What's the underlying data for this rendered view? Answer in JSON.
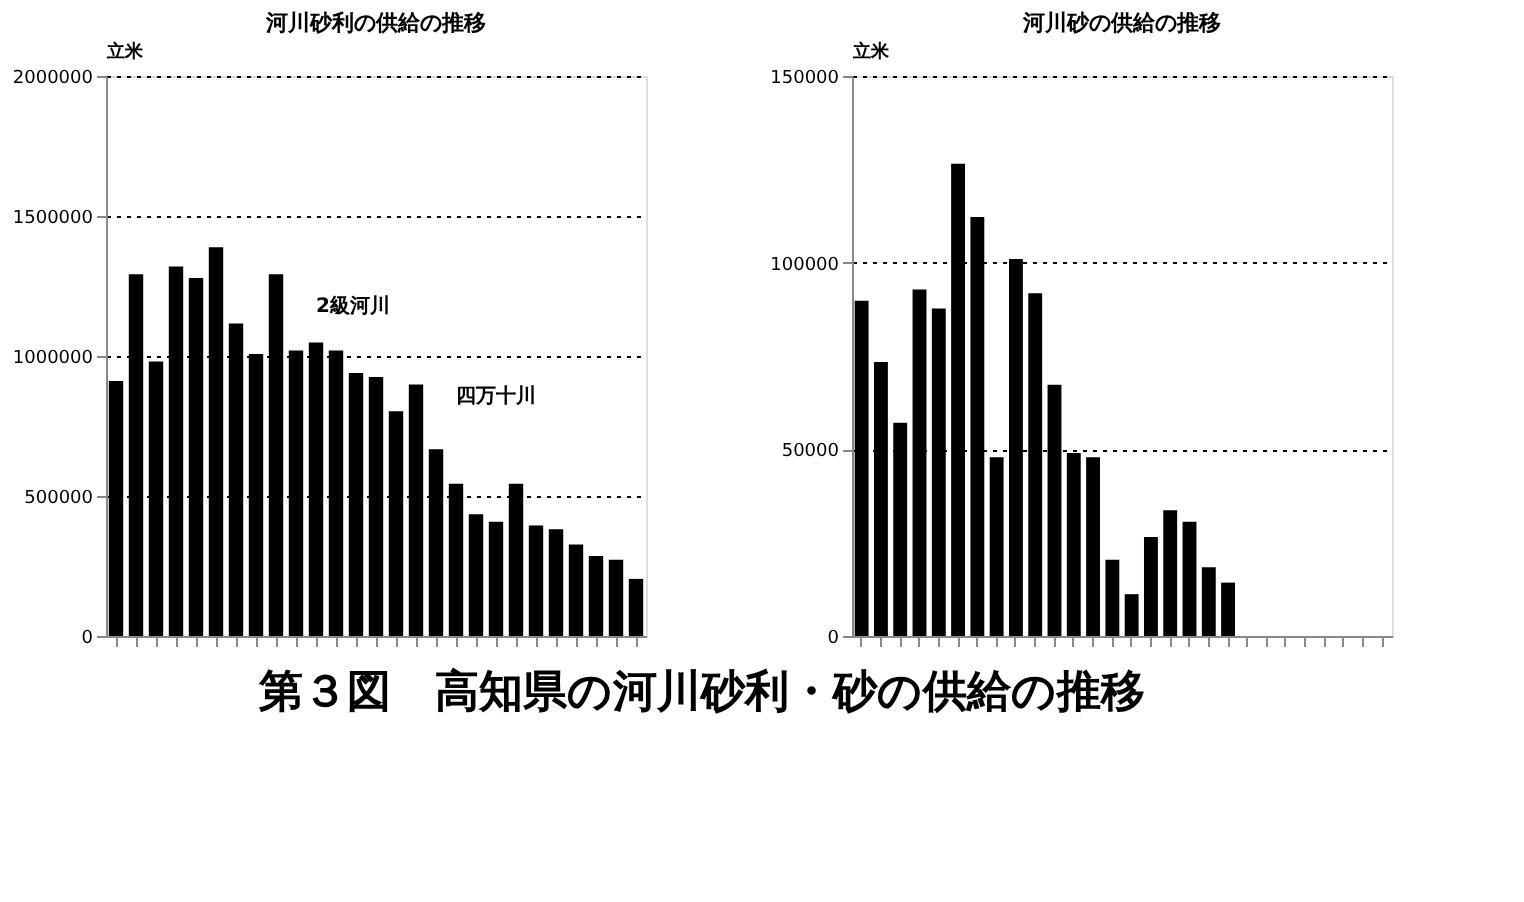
{
  "chart_data": [
    {
      "type": "bar",
      "title": "河川砂利の供給の推移",
      "ylabel": "立米",
      "categories": [
        null,
        null,
        null,
        null,
        null,
        null,
        null,
        null,
        null,
        null,
        null,
        null,
        null,
        null,
        null,
        null,
        null,
        null,
        null,
        null,
        null,
        null,
        null,
        null,
        null,
        null,
        null
      ],
      "series": [
        {
          "color": "#000000",
          "values": [
            911000,
            1292000,
            980000,
            1320000,
            1279000,
            1388000,
            1116000,
            1007000,
            1292000,
            1020000,
            1048000,
            1020000,
            939000,
            925000,
            803000,
            898000,
            667000,
            544000,
            435000,
            408000,
            544000,
            395000,
            381000,
            327000,
            286000,
            272000,
            204000
          ]
        }
      ],
      "ylim": [
        0,
        2000000
      ],
      "yticks": [
        0,
        500000,
        1000000,
        1500000,
        2000000
      ],
      "grid": "y",
      "tick_labels": "y",
      "annotations": [
        "2級河川",
        "四万十川"
      ]
    },
    {
      "type": "bar",
      "title": "河川砂の供給の推移",
      "ylabel": "立米",
      "categories": [
        null,
        null,
        null,
        null,
        null,
        null,
        null,
        null,
        null,
        null,
        null,
        null,
        null,
        null,
        null,
        null,
        null,
        null,
        null,
        null,
        null,
        null,
        null,
        null,
        null,
        null,
        null,
        null
      ],
      "series": [
        {
          "color": "#000000",
          "values": [
            89800,
            73400,
            57100,
            92800,
            87700,
            126500,
            112200,
            47900,
            101000,
            91800,
            67300,
            49000,
            47900,
            20400,
            11200,
            26500,
            33700,
            30600,
            18400,
            14300,
            0,
            0,
            0,
            0,
            0,
            0,
            0,
            0
          ]
        }
      ],
      "ylim": [
        0,
        150000
      ],
      "yticks": [
        0,
        50000,
        100000,
        150000
      ],
      "grid": "y",
      "tick_labels": "y",
      "annotations": [
        "第３図　高知県の河川砂利・砂の供給の推移"
      ]
    }
  ]
}
